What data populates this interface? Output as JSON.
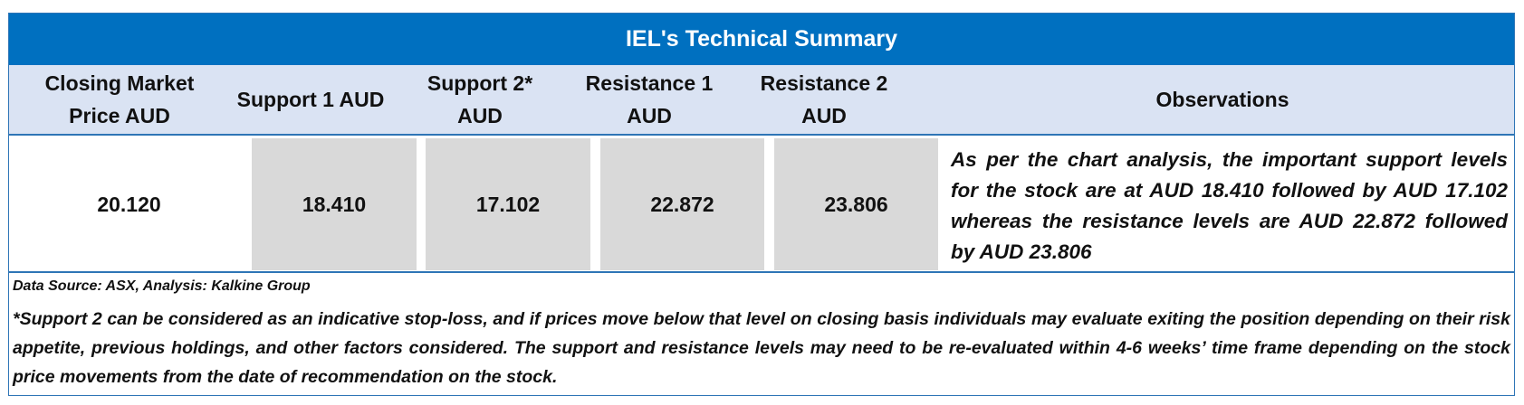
{
  "title": "IEL's Technical Summary",
  "headers": {
    "closing": "Closing Market Price AUD",
    "support1": "Support 1 AUD",
    "support2": "Support 2* AUD",
    "resistance1": "Resistance 1 AUD",
    "resistance2": "Resistance 2 AUD",
    "observations": "Observations"
  },
  "values": {
    "closing": "20.120",
    "support1": "18.410",
    "support2": "17.102",
    "resistance1": "22.872",
    "resistance2": "23.806",
    "observations": "As per the chart analysis, the important support levels for the stock are at AUD 18.410 followed by AUD 17.102 whereas the resistance levels are AUD 22.872 followed by AUD 23.806"
  },
  "footer": {
    "source": "Data Source: ASX, Analysis: Kalkine Group",
    "note": "*Support 2 can be considered as an indicative stop-loss, and if prices move below that level on closing basis individuals may evaluate exiting the position depending on their risk appetite, previous holdings, and other factors considered. The support and resistance levels may need to be re-evaluated within 4-6 weeks’ time frame depending on the stock price movements from the date of recommendation on the stock."
  },
  "colors": {
    "title_bg": "#0070c0",
    "header_bg": "#dae3f3",
    "shaded_cell": "#d9d9d9",
    "border": "#2e75b6"
  }
}
